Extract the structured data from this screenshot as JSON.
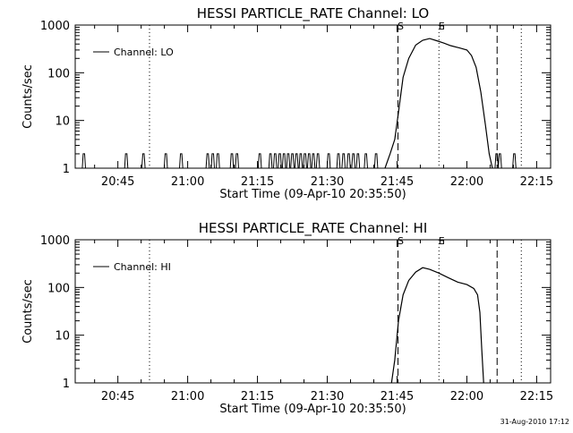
{
  "footer_stamp": "31-Aug-2010 17:12",
  "colors": {
    "line": "#000000",
    "background": "#ffffff"
  },
  "chart_data": [
    {
      "type": "line",
      "title": "HESSI PARTICLE_RATE Channel: LO",
      "xlabel": "Start Time (09-Apr-10 20:35:50)",
      "ylabel": "Counts/sec",
      "xlim_minutes": [
        1235.83,
        1338
      ],
      "ylim": [
        1,
        1000
      ],
      "yscale": "log",
      "grid": false,
      "legend_position": "top-left",
      "series_label": "Channel: LO",
      "xticks": [
        {
          "minute": 1245,
          "label": "20:45"
        },
        {
          "minute": 1260,
          "label": "21:00"
        },
        {
          "minute": 1275,
          "label": "21:15"
        },
        {
          "minute": 1290,
          "label": "21:30"
        },
        {
          "minute": 1305,
          "label": "21:45"
        },
        {
          "minute": 1320,
          "label": "22:00"
        },
        {
          "minute": 1335,
          "label": "22:15"
        }
      ],
      "yticks": [
        {
          "value": 1,
          "label": "1"
        },
        {
          "value": 10,
          "label": "10"
        },
        {
          "value": 100,
          "label": "100"
        },
        {
          "value": 1000,
          "label": "1000"
        }
      ],
      "markers": [
        {
          "minute": 1305.2,
          "style": "dashed",
          "label": "S"
        },
        {
          "minute": 1314.0,
          "style": "dotted",
          "label": "E"
        },
        {
          "minute": 1326.5,
          "style": "dashed",
          "label": ""
        },
        {
          "minute": 1251.8,
          "style": "dotted",
          "label": ""
        },
        {
          "minute": 1331.7,
          "style": "dotted",
          "label": ""
        }
      ],
      "spikes_minutes": [
        1237.7,
        1246.8,
        1250.5,
        1255.3,
        1258.6,
        1264.3,
        1265.4,
        1266.5,
        1269.5,
        1270.6,
        1275.5,
        1277.8,
        1278.8,
        1279.8,
        1280.7,
        1281.6,
        1282.5,
        1283.4,
        1284.3,
        1285.2,
        1286.1,
        1287.0,
        1288.0,
        1290.3,
        1292.4,
        1293.5,
        1294.6,
        1295.6,
        1296.6,
        1298.3,
        1300.5
      ],
      "flare": [
        {
          "minute": 1302.4,
          "value": 1
        },
        {
          "minute": 1303.5,
          "value": 2
        },
        {
          "minute": 1304.5,
          "value": 4
        },
        {
          "minute": 1305.3,
          "value": 15
        },
        {
          "minute": 1306.3,
          "value": 80
        },
        {
          "minute": 1307.5,
          "value": 200
        },
        {
          "minute": 1309.0,
          "value": 380
        },
        {
          "minute": 1310.5,
          "value": 480
        },
        {
          "minute": 1312.0,
          "value": 520
        },
        {
          "minute": 1313.5,
          "value": 470
        },
        {
          "minute": 1315.0,
          "value": 420
        },
        {
          "minute": 1316.5,
          "value": 370
        },
        {
          "minute": 1318.5,
          "value": 330
        },
        {
          "minute": 1320.0,
          "value": 300
        },
        {
          "minute": 1321.0,
          "value": 230
        },
        {
          "minute": 1322.0,
          "value": 130
        },
        {
          "minute": 1323.0,
          "value": 40
        },
        {
          "minute": 1324.0,
          "value": 8
        },
        {
          "minute": 1324.8,
          "value": 2
        },
        {
          "minute": 1325.5,
          "value": 1
        }
      ],
      "post_spikes_minutes": [
        1326.4,
        1327.1,
        1330.2
      ]
    },
    {
      "type": "line",
      "title": "HESSI PARTICLE_RATE Channel: HI",
      "xlabel": "Start Time (09-Apr-10 20:35:50)",
      "ylabel": "Counts/sec",
      "xlim_minutes": [
        1235.83,
        1338
      ],
      "ylim": [
        1,
        1000
      ],
      "yscale": "log",
      "grid": false,
      "legend_position": "top-left",
      "series_label": "Channel: HI",
      "xticks": [
        {
          "minute": 1245,
          "label": "20:45"
        },
        {
          "minute": 1260,
          "label": "21:00"
        },
        {
          "minute": 1275,
          "label": "21:15"
        },
        {
          "minute": 1290,
          "label": "21:30"
        },
        {
          "minute": 1305,
          "label": "21:45"
        },
        {
          "minute": 1320,
          "label": "22:00"
        },
        {
          "minute": 1335,
          "label": "22:15"
        }
      ],
      "yticks": [
        {
          "value": 1,
          "label": "1"
        },
        {
          "value": 10,
          "label": "10"
        },
        {
          "value": 100,
          "label": "100"
        },
        {
          "value": 1000,
          "label": "1000"
        }
      ],
      "markers": [
        {
          "minute": 1305.2,
          "style": "dashed",
          "label": "S"
        },
        {
          "minute": 1314.0,
          "style": "dotted",
          "label": "E"
        },
        {
          "minute": 1326.5,
          "style": "dashed",
          "label": ""
        },
        {
          "minute": 1251.8,
          "style": "dotted",
          "label": ""
        },
        {
          "minute": 1331.7,
          "style": "dotted",
          "label": ""
        }
      ],
      "spikes_minutes": [],
      "flare": [
        {
          "minute": 1303.8,
          "value": 1
        },
        {
          "minute": 1304.5,
          "value": 3
        },
        {
          "minute": 1305.3,
          "value": 20
        },
        {
          "minute": 1306.3,
          "value": 70
        },
        {
          "minute": 1307.5,
          "value": 140
        },
        {
          "minute": 1309.0,
          "value": 210
        },
        {
          "minute": 1310.5,
          "value": 260
        },
        {
          "minute": 1312.0,
          "value": 240
        },
        {
          "minute": 1314.0,
          "value": 200
        },
        {
          "minute": 1316.0,
          "value": 160
        },
        {
          "minute": 1318.0,
          "value": 130
        },
        {
          "minute": 1320.0,
          "value": 115
        },
        {
          "minute": 1321.5,
          "value": 95
        },
        {
          "minute": 1322.3,
          "value": 70
        },
        {
          "minute": 1322.8,
          "value": 30
        },
        {
          "minute": 1323.2,
          "value": 5
        },
        {
          "minute": 1323.6,
          "value": 1
        }
      ],
      "post_spikes_minutes": []
    }
  ]
}
